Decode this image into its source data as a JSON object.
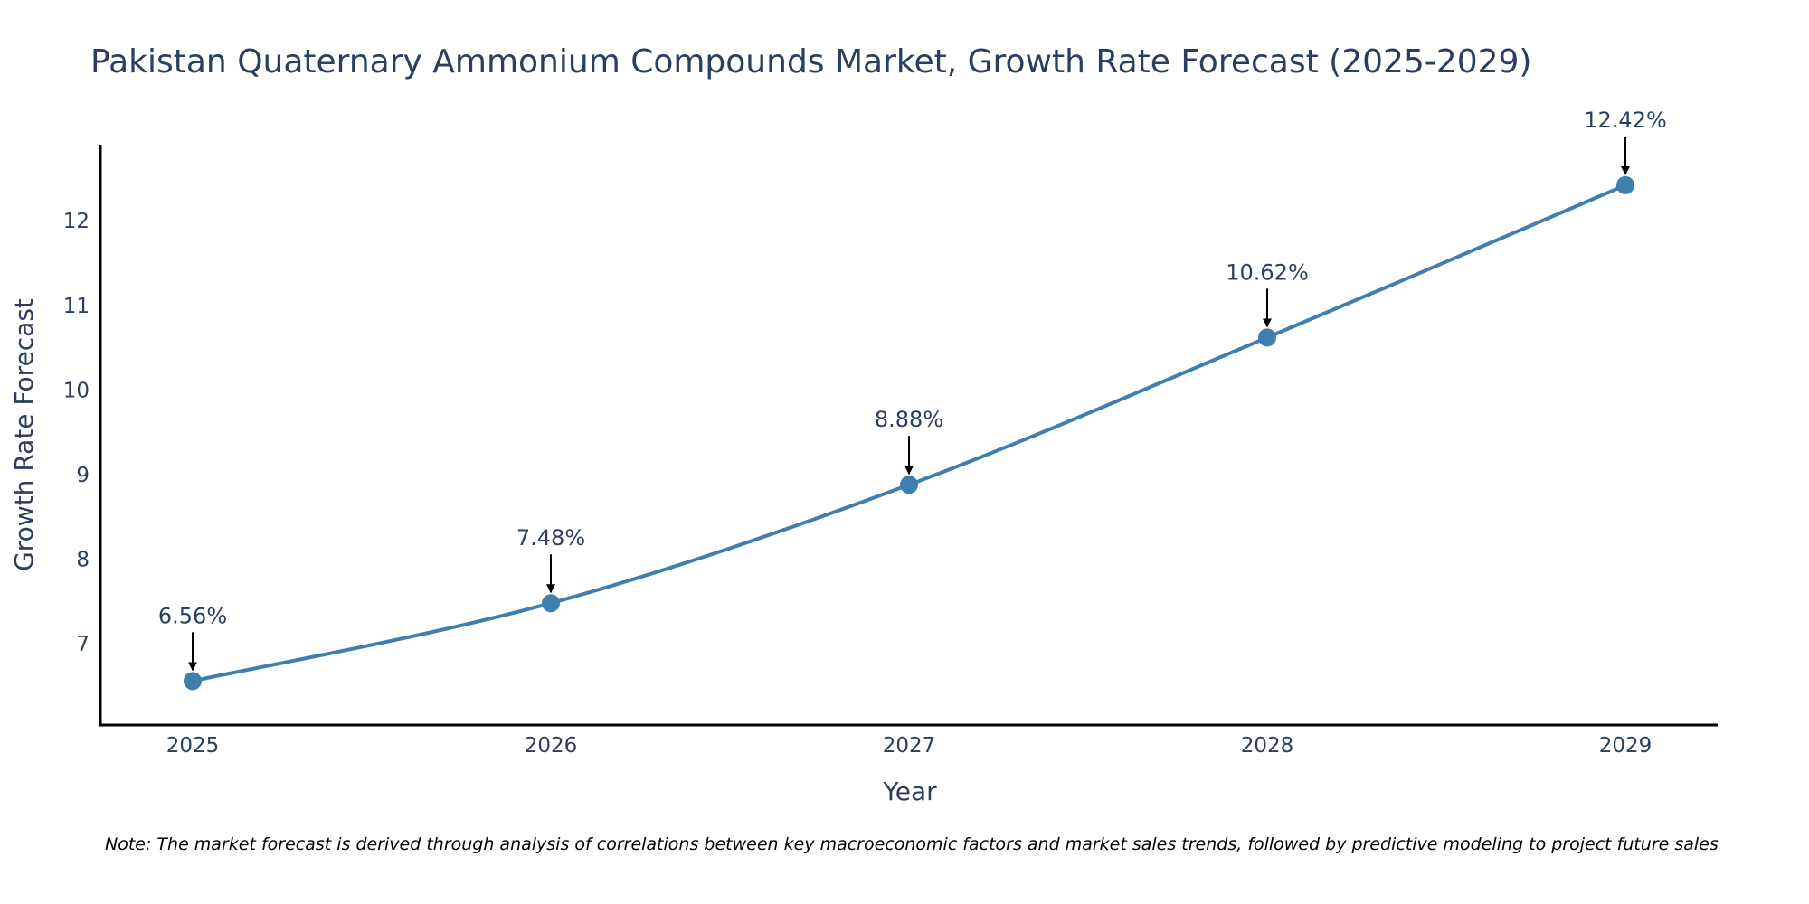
{
  "chart_data": {
    "type": "line",
    "title": "Pakistan Quaternary Ammonium Compounds Market, Growth Rate Forecast (2025-2029)",
    "xlabel": "Year",
    "ylabel": "Growth Rate Forecast",
    "categories": [
      "2025",
      "2026",
      "2027",
      "2028",
      "2029"
    ],
    "series": [
      {
        "name": "Growth Rate Forecast",
        "values": [
          6.56,
          7.48,
          8.88,
          10.62,
          12.42
        ],
        "labels": [
          "6.56%",
          "7.48%",
          "8.88%",
          "10.62%",
          "12.42%"
        ]
      }
    ],
    "ylim": [
      6.04,
      12.9
    ],
    "yticks": [
      7,
      8,
      9,
      10,
      11,
      12
    ],
    "grid": false,
    "legend": "none",
    "line_color": "#3f7fad",
    "marker_color": "#3f7fad",
    "arrow_color": "#000000"
  },
  "note": "Note: The market forecast is derived through analysis of correlations between key macroeconomic factors and market sales trends, followed by predictive modeling to project future sales"
}
